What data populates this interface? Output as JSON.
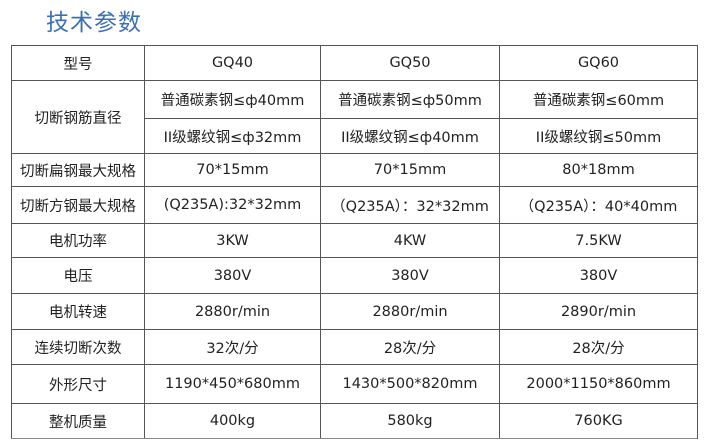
{
  "title": "技术参数",
  "header": {
    "label": "型号",
    "models": [
      "GQ40",
      "GQ50",
      "GQ60"
    ]
  },
  "rows": [
    {
      "label": "切断钢筋直径",
      "values": [
        "普通碳素钢≤ф40mm",
        "普通碳素钢≤ф50mm",
        "普通碳素钢≤60mm"
      ],
      "values2": [
        "II级螺纹钢≤ф32mm",
        "II级螺纹钢≤ф40mm",
        "II级螺纹钢≤50mm"
      ]
    },
    {
      "label": "切断扁钢最大规格",
      "values": [
        "70*15mm",
        "70*15mm",
        "80*18mm"
      ]
    },
    {
      "label": "切断方钢最大规格",
      "values": [
        "(Q235A):32*32mm",
        "（Q235A）：32*32mm",
        "（Q235A）：40*40mm"
      ]
    },
    {
      "label": "电机功率",
      "values": [
        "3KW",
        "4KW",
        "7.5KW"
      ]
    },
    {
      "label": "电压",
      "values": [
        "380V",
        "380V",
        "380V"
      ]
    },
    {
      "label": "电机转速",
      "values": [
        "2880r/min",
        "2880r/min",
        "2890r/min"
      ]
    },
    {
      "label": "连续切断次数",
      "values": [
        "32次/分",
        "28次/分",
        "28次/分"
      ]
    },
    {
      "label": "外形尺寸",
      "values": [
        "1190*450*680mm",
        "1430*500*820mm",
        "2000*1150*860mm"
      ]
    },
    {
      "label": "整机质量",
      "values": [
        "400kg",
        "580kg",
        "760KG"
      ]
    }
  ]
}
